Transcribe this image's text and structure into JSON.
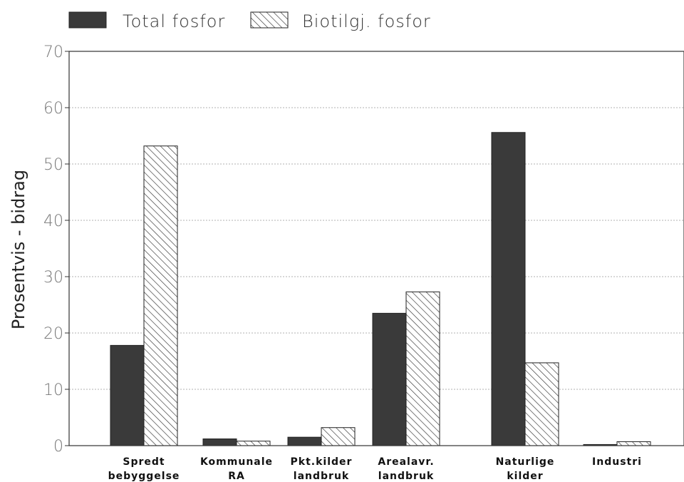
{
  "chart_data": {
    "type": "bar",
    "title": "",
    "ylabel": "Prosentvis - bidrag",
    "xlabel": "",
    "ylim": [
      0,
      70
    ],
    "yticks": [
      0,
      10,
      20,
      30,
      40,
      50,
      60,
      70
    ],
    "grid": true,
    "legend": "top-left",
    "categories": [
      [
        "Spredt",
        "bebyggelse"
      ],
      [
        "Kommunale",
        "RA"
      ],
      [
        "Pkt.kilder",
        "landbruk"
      ],
      [
        "Arealavr.",
        "landbruk"
      ],
      [
        "Naturlige",
        "kilder"
      ],
      [
        "Industri"
      ]
    ],
    "series": [
      {
        "name": "Total fosfor",
        "pattern": "solid",
        "color": "#3a3a3a",
        "values": [
          17.8,
          1.2,
          1.5,
          23.5,
          55.6,
          0.2
        ]
      },
      {
        "name": "Biotilgj. fosfor",
        "pattern": "hatched",
        "color": "#2a2a2a",
        "values": [
          53.2,
          0.8,
          3.2,
          27.3,
          14.7,
          0.7
        ]
      }
    ]
  }
}
